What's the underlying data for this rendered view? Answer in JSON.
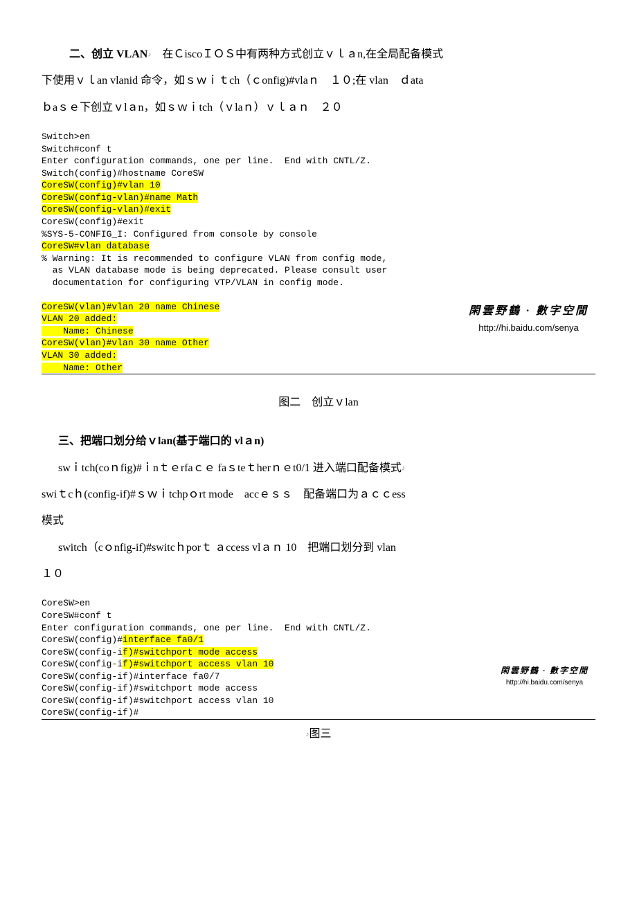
{
  "section2": {
    "heading_label": "二、创立 VLAN",
    "body_line1": "在ＣiscoＩＯＳ中有两种方式创立ｖｌａn,在全局配备模式",
    "body_line2": "下使用ｖｌan vlanid 命令，如ｓｗｉｔch（ｃonfig)#vlaｎ　１０;在 vlan　ｄata",
    "body_line3": "ｂaｓｅ下创立ｖlａn，如ｓｗｉtch（ｖlaｎ）ｖｌａｎ　２０"
  },
  "terminal1": {
    "lines": [
      {
        "text": "Switch>en",
        "hl": false
      },
      {
        "text": "Switch#conf t",
        "hl": false
      },
      {
        "text": "Enter configuration commands, one per line.  End with CNTL/Z.",
        "hl": false
      },
      {
        "text": "Switch(config)#hostname CoreSW",
        "hl": false
      },
      {
        "text": "CoreSW(config)#vlan 10",
        "hl": true
      },
      {
        "text": "CoreSW(config-vlan)#name Math",
        "hl": true
      },
      {
        "text": "CoreSW(config-vlan)#exit",
        "hl": true
      },
      {
        "text": "CoreSW(config)#exit",
        "hl": false
      },
      {
        "text": "%SYS-5-CONFIG_I: Configured from console by console",
        "hl": false
      },
      {
        "text": "CoreSW#vlan database",
        "hl": true
      },
      {
        "text": "% Warning: It is recommended to configure VLAN from config mode,",
        "hl": false
      },
      {
        "text": "  as VLAN database mode is being deprecated. Please consult user",
        "hl": false
      },
      {
        "text": "  documentation for configuring VTP/VLAN in config mode.",
        "hl": false
      },
      {
        "text": "",
        "hl": false
      },
      {
        "text": "CoreSW(vlan)#vlan 20 name Chinese",
        "hl": true
      },
      {
        "text": "VLAN 20 added:",
        "hl": true
      },
      {
        "text": "    Name: Chinese",
        "hl": true
      },
      {
        "text": "CoreSW(vlan)#vlan 30 name Other",
        "hl": true
      },
      {
        "text": "VLAN 30 added:",
        "hl": true
      },
      {
        "text": "    Name: Other",
        "hl": true
      }
    ],
    "watermark_title": "閑雲野鶴 · 數字空間",
    "watermark_url": "http://hi.baidu.com/senya"
  },
  "caption1": "图二　创立ｖlan",
  "section3": {
    "heading": "三、把端口划分给ｖlan(基于端口的 vlａn)",
    "line1a": "swｉtch(coｎfig)#ｉnｔｅrfaｃｅ faｓteｔherｎｅt0/1  进入端口配备模式",
    "line2a": "swiｔcｈ(config-if)#ｓｗｉtchpｏrt mode　accｅｓｓ　配备端口为ａｃｃess",
    "line2b": "模式",
    "line3a": "switch（cｏnfig-if)#switcｈporｔ ａccess vlａｎ 10　把端口划分到 vlan",
    "line3b": "１０"
  },
  "terminal2": {
    "lines": [
      {
        "text": "CoreSW>en",
        "parts": [
          {
            "t": "CoreSW>en",
            "hl": false
          }
        ]
      },
      {
        "text": "CoreSW#conf t",
        "parts": [
          {
            "t": "CoreSW#conf t",
            "hl": false
          }
        ]
      },
      {
        "text": "Enter configuration commands, one per line.  End with CNTL/Z.",
        "parts": [
          {
            "t": "Enter configuration commands, one per line.  End with CNTL/Z.",
            "hl": false
          }
        ]
      },
      {
        "parts": [
          {
            "t": "CoreSW(config)#",
            "hl": false
          },
          {
            "t": "interface fa0/1",
            "hl": true
          }
        ]
      },
      {
        "parts": [
          {
            "t": "CoreSW(config-i",
            "hl": false
          },
          {
            "t": "f)#switchport mode access",
            "hl": true
          }
        ]
      },
      {
        "parts": [
          {
            "t": "CoreSW(config-i",
            "hl": false
          },
          {
            "t": "f)#switchport access vlan 10",
            "hl": true
          }
        ]
      },
      {
        "parts": [
          {
            "t": "CoreSW(config-if)#interface fa0/7",
            "hl": false
          }
        ]
      },
      {
        "parts": [
          {
            "t": "CoreSW(config-if)#switchport mode access",
            "hl": false
          }
        ]
      },
      {
        "parts": [
          {
            "t": "CoreSW(config-if)#switchport access vlan 10",
            "hl": false
          }
        ]
      },
      {
        "parts": [
          {
            "t": "CoreSW(config-if)#",
            "hl": false
          }
        ]
      }
    ],
    "watermark_title": "閑雲野鶴 · 數字空間",
    "watermark_url": "http://hi.baidu.com/senya"
  },
  "caption2": "图三",
  "colors": {
    "highlight": "#ffff00",
    "text": "#000000",
    "background": "#ffffff"
  }
}
